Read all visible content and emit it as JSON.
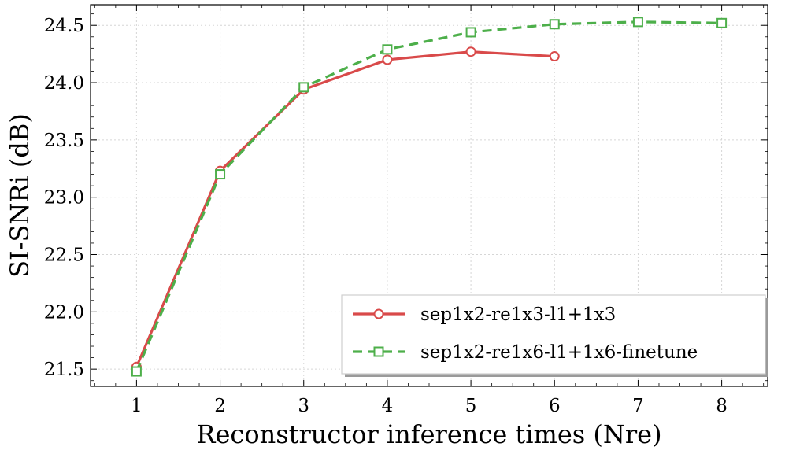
{
  "chart_data": {
    "type": "line",
    "title": "",
    "xlabel": "Reconstructor inference times (Nre)",
    "ylabel": "SI-SNRi (dB)",
    "xlim": [
      0.45,
      8.55
    ],
    "ylim": [
      21.35,
      24.68
    ],
    "xticks": [
      1,
      2,
      3,
      4,
      5,
      6,
      7,
      8
    ],
    "xtick_labels": [
      "1",
      "2",
      "3",
      "4",
      "5",
      "6",
      "7",
      "8"
    ],
    "yticks": [
      21.5,
      22.0,
      22.5,
      23.0,
      23.5,
      24.0,
      24.5
    ],
    "ytick_labels": [
      "21.5",
      "22.0",
      "22.5",
      "23.0",
      "23.5",
      "24.0",
      "24.5"
    ],
    "grid": true,
    "legend_position": "lower-right",
    "series": [
      {
        "name": "sep1x2-re1x3-l1+1x3",
        "color": "#d94a4a",
        "marker": "circle",
        "line_style": "solid",
        "x": [
          1,
          2,
          3,
          4,
          5,
          6
        ],
        "y": [
          21.52,
          23.23,
          23.94,
          24.2,
          24.27,
          24.23
        ]
      },
      {
        "name": "sep1x2-re1x6-l1+1x6-finetune",
        "color": "#4daf4a",
        "marker": "square",
        "line_style": "dashed",
        "x": [
          1,
          2,
          3,
          4,
          5,
          6,
          7,
          8
        ],
        "y": [
          21.48,
          23.2,
          23.96,
          24.29,
          24.44,
          24.51,
          24.53,
          24.52
        ]
      }
    ]
  }
}
